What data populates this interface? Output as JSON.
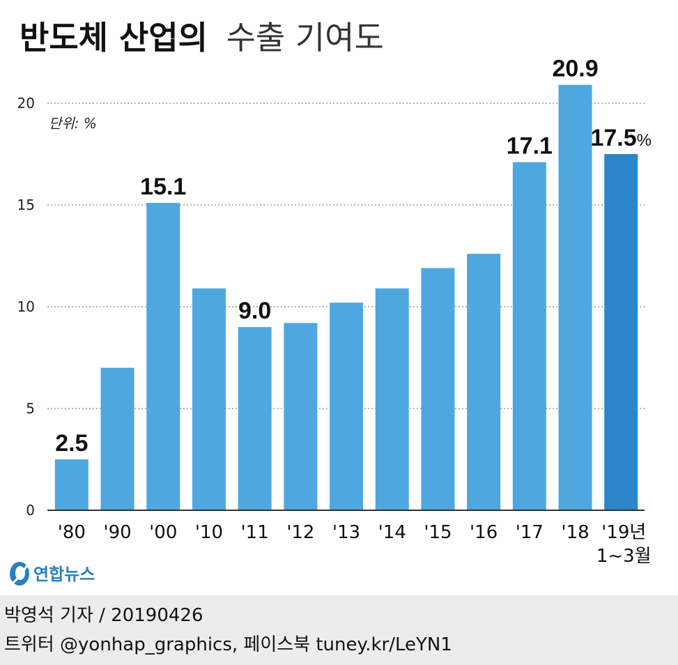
{
  "title": {
    "bold": "반도체 산업의",
    "light": "수출 기여도"
  },
  "unit_note": "단위: %",
  "logo": {
    "text": "연합뉴스"
  },
  "footer": {
    "byline": "박영석 기자 /  20190426",
    "social": "트위터 @yonhap_graphics, 페이스북 tuney.kr/LeYN1"
  },
  "colors": {
    "bar": "#4ea8df",
    "bar_highlight": "#2a86c8",
    "grid": "#9a9a9a",
    "axis": "#333333",
    "logo": "#2a7fc2"
  },
  "chart_data": {
    "type": "bar",
    "title": "반도체 산업의 수출 기여도",
    "unit": "단위: %",
    "categories": [
      "'80",
      "'90",
      "'00",
      "'10",
      "'11",
      "'12",
      "'13",
      "'14",
      "'15",
      "'16",
      "'17",
      "'18",
      "'19년 1~3월"
    ],
    "category_labels": [
      [
        "'80"
      ],
      [
        "'90"
      ],
      [
        "'00"
      ],
      [
        "'10"
      ],
      [
        "'11"
      ],
      [
        "'12"
      ],
      [
        "'13"
      ],
      [
        "'14"
      ],
      [
        "'15"
      ],
      [
        "'16"
      ],
      [
        "'17"
      ],
      [
        "'18"
      ],
      [
        "'19년",
        "1~3월"
      ]
    ],
    "values": [
      2.5,
      7.0,
      15.1,
      10.9,
      9.0,
      9.2,
      10.2,
      10.9,
      11.9,
      12.6,
      17.1,
      20.9,
      17.5
    ],
    "data_labels": [
      "2.5",
      "",
      "15.1",
      "",
      "9.0",
      "",
      "",
      "",
      "",
      "",
      "17.1",
      "20.9",
      "17.5"
    ],
    "data_label_suffix_last": "%",
    "highlight_index": 12,
    "ylim": [
      0,
      20
    ],
    "yticks": [
      0,
      5,
      10,
      15,
      20
    ],
    "grid": true,
    "xlabel": "",
    "ylabel": ""
  }
}
